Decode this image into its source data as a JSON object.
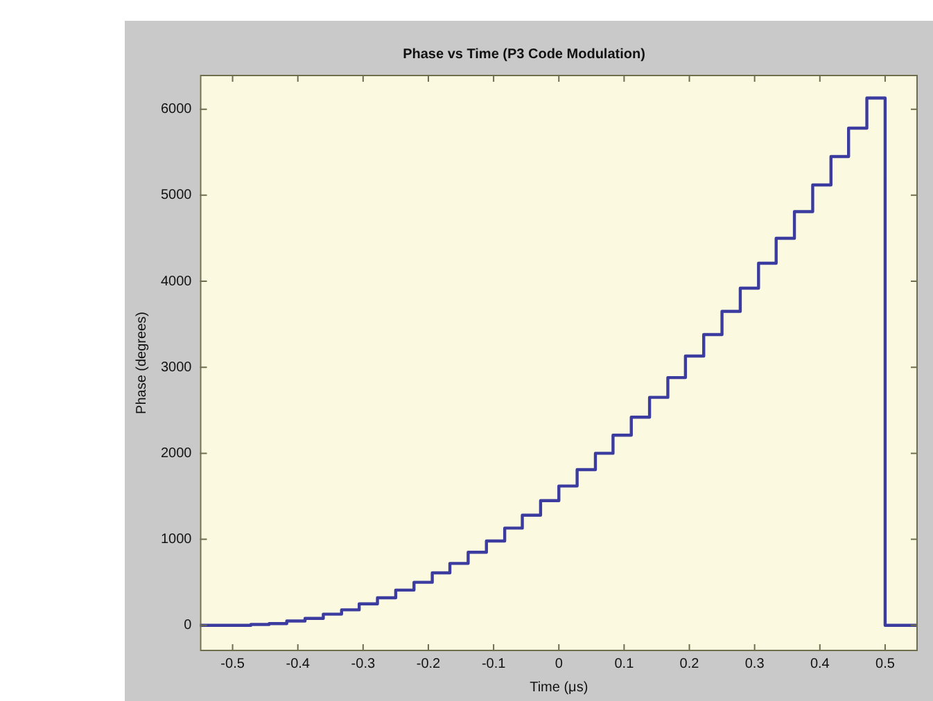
{
  "chart_data": {
    "type": "step",
    "title": "Phase vs Time (P3 Code Modulation)",
    "xlabel": "Time (μs)",
    "ylabel": "Phase (degrees)",
    "x": [
      -0.55,
      -0.5,
      -0.472,
      -0.444,
      -0.417,
      -0.389,
      -0.361,
      -0.333,
      -0.306,
      -0.278,
      -0.25,
      -0.222,
      -0.194,
      -0.167,
      -0.139,
      -0.111,
      -0.083,
      -0.056,
      -0.028,
      0,
      0.028,
      0.056,
      0.083,
      0.111,
      0.139,
      0.167,
      0.194,
      0.222,
      0.25,
      0.278,
      0.306,
      0.333,
      0.361,
      0.389,
      0.417,
      0.444,
      0.472,
      0.5,
      0.55
    ],
    "series": [
      {
        "color": "#3c3ca0",
        "values": [
          0,
          0,
          10,
          20,
          50,
          80,
          130,
          180,
          250,
          320,
          410,
          500,
          610,
          720,
          850,
          980,
          1130,
          1280,
          1450,
          1620,
          1810,
          2000,
          2210,
          2420,
          2650,
          2880,
          3130,
          3380,
          3650,
          3920,
          4210,
          4500,
          4810,
          5120,
          5450,
          5780,
          6130,
          0,
          0
        ]
      }
    ],
    "xlim": [
      -0.55,
      0.55
    ],
    "xticks": [
      -0.5,
      -0.4,
      -0.3,
      -0.2,
      -0.1,
      0,
      0.1,
      0.2,
      0.3,
      0.4,
      0.5
    ],
    "ylim": [
      -300,
      6400
    ],
    "yticks": [
      0,
      1000,
      2000,
      3000,
      4000,
      5000,
      6000
    ],
    "grid": false,
    "legend": false,
    "marker": "none",
    "line_style": "solid"
  }
}
